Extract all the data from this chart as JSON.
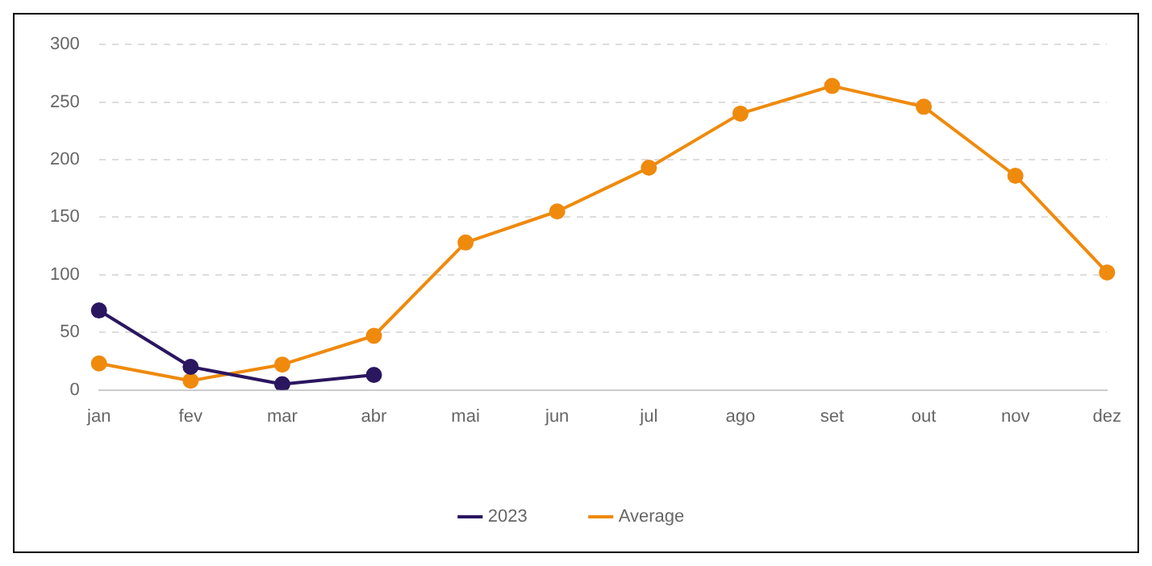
{
  "chart_data": {
    "type": "line",
    "categories": [
      "jan",
      "fev",
      "mar",
      "abr",
      "mai",
      "jun",
      "jul",
      "ago",
      "set",
      "out",
      "nov",
      "dez"
    ],
    "series": [
      {
        "name": "2023",
        "color": "#2b1660",
        "values": [
          69,
          20,
          5,
          13,
          null,
          null,
          null,
          null,
          null,
          null,
          null,
          null
        ]
      },
      {
        "name": "Average",
        "color": "#ef8a0c",
        "values": [
          23,
          8,
          22,
          47,
          128,
          155,
          193,
          240,
          264,
          246,
          186,
          102
        ]
      }
    ],
    "ylim": [
      0,
      300
    ],
    "yticks": [
      0,
      50,
      100,
      150,
      200,
      250,
      300
    ],
    "grid": "y",
    "legend": "bottom",
    "marker": "circle",
    "line_style": "solid"
  }
}
